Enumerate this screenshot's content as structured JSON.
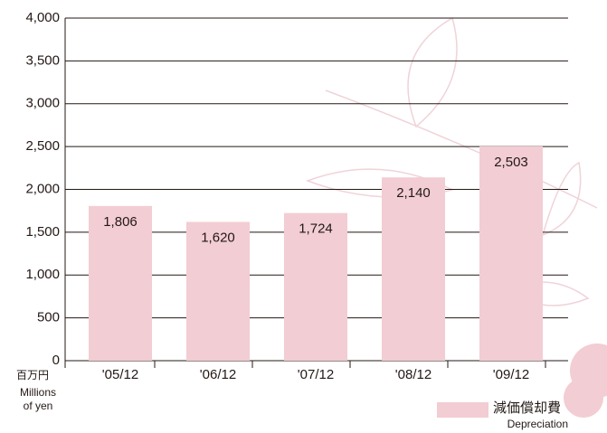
{
  "chart_data": {
    "type": "bar",
    "categories": [
      "'05/12",
      "'06/12",
      "'07/12",
      "'08/12",
      "'09/12"
    ],
    "series": [
      {
        "name": "減価償却費",
        "name_en": "Depreciation",
        "color": "#f2cdd3",
        "values": [
          1806,
          1620,
          1724,
          2140,
          2503
        ],
        "value_labels": [
          "1,806",
          "1,620",
          "1,724",
          "2,140",
          "2,503"
        ]
      }
    ],
    "y_unit": [
      "百万円",
      "Millions",
      "of yen"
    ],
    "ylim": [
      0,
      4000
    ],
    "yticks": [
      0,
      {
        "value": 500,
        "label": "500"
      },
      {
        "value": 1000,
        "label": "1,000"
      },
      {
        "value": 1500,
        "label": "1,500"
      },
      {
        "value": 2000,
        "label": "2,000"
      },
      {
        "value": 2500,
        "label": "2,500"
      },
      {
        "value": 3000,
        "label": "3,000"
      },
      {
        "value": 3500,
        "label": "3,500"
      },
      {
        "value": 4000,
        "label": "4,000"
      }
    ],
    "grid": true
  }
}
